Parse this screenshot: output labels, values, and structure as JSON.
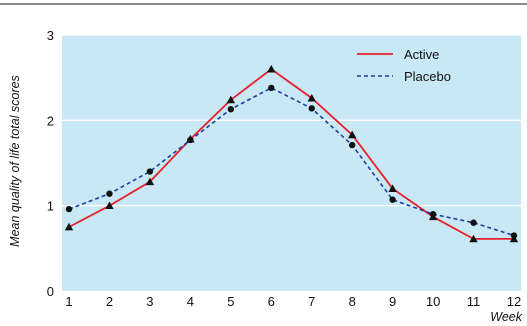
{
  "chart_data": {
    "type": "line",
    "title": "",
    "xlabel": "Week",
    "ylabel": "Mean quality of life total scores",
    "x": [
      1,
      2,
      3,
      4,
      5,
      6,
      7,
      8,
      9,
      10,
      11,
      12
    ],
    "xlim": [
      1,
      12
    ],
    "ylim": [
      0,
      3
    ],
    "yticks": [
      0,
      1,
      2,
      3
    ],
    "grid": "horizontal",
    "legend_position": "top-right",
    "plot_background": "#c8e8f6",
    "series": [
      {
        "name": "Active",
        "color": "#e8202a",
        "line_style": "solid",
        "marker": "triangle",
        "values": [
          0.75,
          1.0,
          1.28,
          1.78,
          2.24,
          2.6,
          2.26,
          1.83,
          1.2,
          0.87,
          0.61,
          0.61
        ]
      },
      {
        "name": "Placebo",
        "color": "#1f3e9a",
        "line_style": "dashed",
        "marker": "circle",
        "values": [
          0.96,
          1.14,
          1.4,
          1.77,
          2.13,
          2.38,
          2.14,
          1.71,
          1.07,
          0.9,
          0.8,
          0.65
        ]
      }
    ]
  }
}
